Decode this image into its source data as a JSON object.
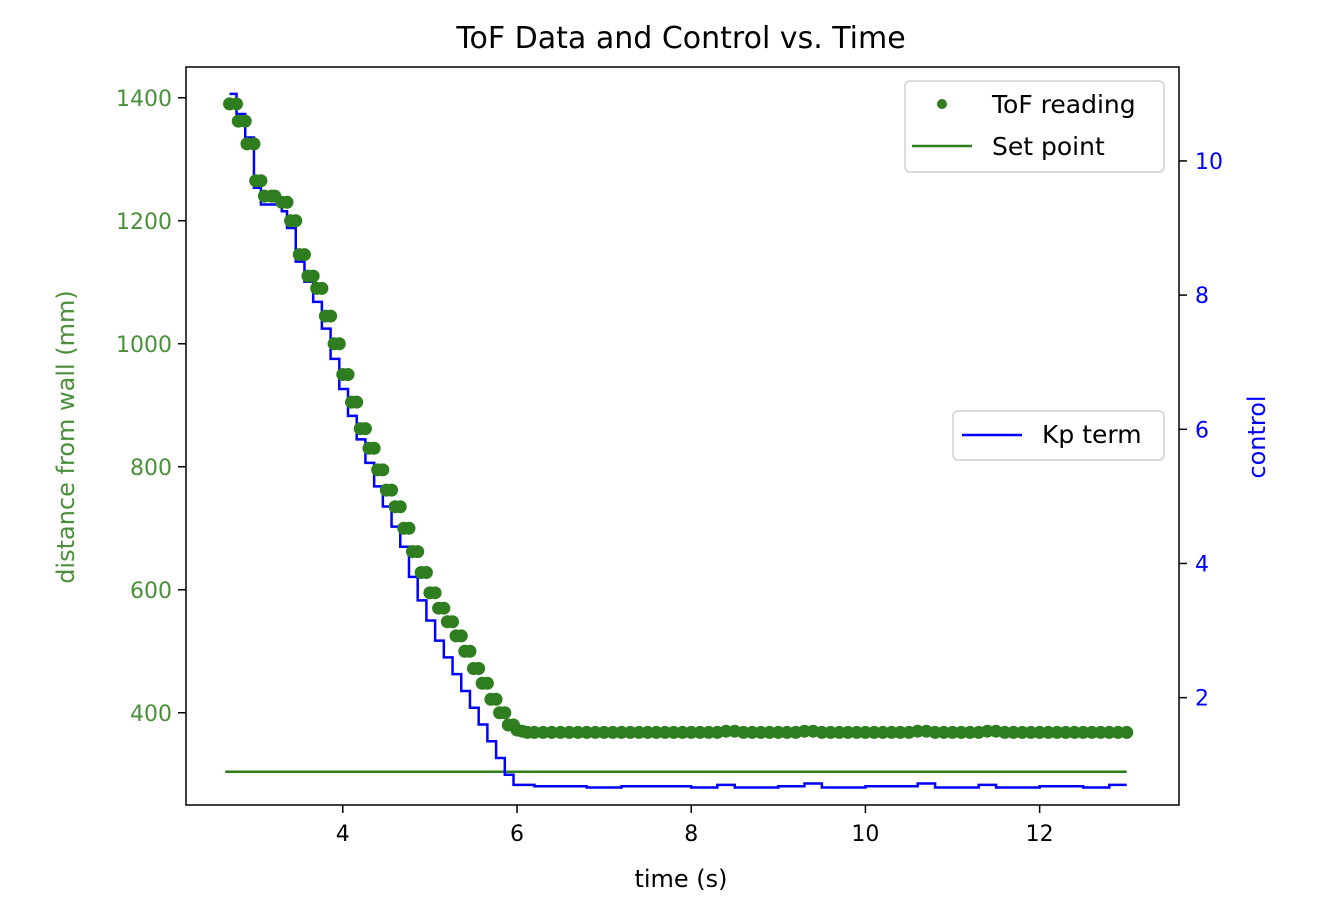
{
  "chart_data": {
    "type": "line",
    "title": "ToF Data and Control vs. Time",
    "xlabel": "time (s)",
    "ylabel_left": "distance from wall (mm)",
    "ylabel_right": "control",
    "xlim": [
      2.2,
      13.6
    ],
    "ylim_left": [
      250,
      1450
    ],
    "ylim_right": [
      0.4,
      11.4
    ],
    "x_ticks": [
      4,
      6,
      8,
      10,
      12
    ],
    "y_left_ticks": [
      400,
      600,
      800,
      1000,
      1200,
      1400
    ],
    "y_right_ticks": [
      2,
      4,
      6,
      8,
      10
    ],
    "grid": false,
    "colors": {
      "tof": "#2e7d1f",
      "setpoint": "#2e7d1f",
      "kp": "#0000ff",
      "left_axis": "#4a8f3a",
      "right_axis": "#0000ff"
    },
    "legends": [
      {
        "placement": "top-right",
        "entries": [
          "ToF reading",
          "Set point"
        ]
      },
      {
        "placement": "center-right",
        "entries": [
          "Kp term"
        ]
      }
    ],
    "series": [
      {
        "name": "ToF reading",
        "axis": "left",
        "style": "scatter",
        "points": [
          [
            2.7,
            1390
          ],
          [
            2.78,
            1390
          ],
          [
            2.8,
            1362
          ],
          [
            2.88,
            1362
          ],
          [
            2.9,
            1325
          ],
          [
            2.98,
            1325
          ],
          [
            3.0,
            1265
          ],
          [
            3.06,
            1265
          ],
          [
            3.1,
            1240
          ],
          [
            3.18,
            1240
          ],
          [
            3.22,
            1240
          ],
          [
            3.3,
            1230
          ],
          [
            3.36,
            1230
          ],
          [
            3.4,
            1200
          ],
          [
            3.46,
            1200
          ],
          [
            3.5,
            1145
          ],
          [
            3.56,
            1145
          ],
          [
            3.6,
            1110
          ],
          [
            3.66,
            1110
          ],
          [
            3.7,
            1090
          ],
          [
            3.76,
            1090
          ],
          [
            3.8,
            1045
          ],
          [
            3.86,
            1045
          ],
          [
            3.9,
            1000
          ],
          [
            3.96,
            1000
          ],
          [
            4.0,
            950
          ],
          [
            4.06,
            950
          ],
          [
            4.1,
            905
          ],
          [
            4.16,
            905
          ],
          [
            4.2,
            862
          ],
          [
            4.26,
            862
          ],
          [
            4.3,
            830
          ],
          [
            4.36,
            830
          ],
          [
            4.4,
            795
          ],
          [
            4.46,
            795
          ],
          [
            4.5,
            762
          ],
          [
            4.56,
            762
          ],
          [
            4.6,
            735
          ],
          [
            4.66,
            735
          ],
          [
            4.7,
            700
          ],
          [
            4.76,
            700
          ],
          [
            4.8,
            662
          ],
          [
            4.86,
            662
          ],
          [
            4.9,
            628
          ],
          [
            4.96,
            628
          ],
          [
            5.0,
            595
          ],
          [
            5.06,
            595
          ],
          [
            5.1,
            570
          ],
          [
            5.16,
            570
          ],
          [
            5.2,
            548
          ],
          [
            5.26,
            548
          ],
          [
            5.3,
            525
          ],
          [
            5.36,
            525
          ],
          [
            5.4,
            500
          ],
          [
            5.46,
            500
          ],
          [
            5.5,
            472
          ],
          [
            5.56,
            472
          ],
          [
            5.6,
            448
          ],
          [
            5.66,
            448
          ],
          [
            5.7,
            422
          ],
          [
            5.76,
            422
          ],
          [
            5.8,
            400
          ],
          [
            5.86,
            400
          ],
          [
            5.9,
            380
          ],
          [
            5.96,
            380
          ],
          [
            6.0,
            372
          ],
          [
            6.06,
            370
          ],
          [
            6.12,
            368
          ],
          [
            6.2,
            368
          ],
          [
            6.3,
            368
          ],
          [
            6.4,
            368
          ],
          [
            6.5,
            368
          ],
          [
            6.6,
            368
          ],
          [
            6.7,
            368
          ],
          [
            6.8,
            368
          ],
          [
            6.9,
            368
          ],
          [
            7.0,
            368
          ],
          [
            7.1,
            368
          ],
          [
            7.2,
            368
          ],
          [
            7.3,
            368
          ],
          [
            7.4,
            368
          ],
          [
            7.5,
            368
          ],
          [
            7.6,
            368
          ],
          [
            7.7,
            368
          ],
          [
            7.8,
            368
          ],
          [
            7.9,
            368
          ],
          [
            8.0,
            368
          ],
          [
            8.1,
            368
          ],
          [
            8.2,
            368
          ],
          [
            8.3,
            368
          ],
          [
            8.4,
            370
          ],
          [
            8.5,
            370
          ],
          [
            8.6,
            368
          ],
          [
            8.7,
            368
          ],
          [
            8.8,
            368
          ],
          [
            8.9,
            368
          ],
          [
            9.0,
            368
          ],
          [
            9.1,
            368
          ],
          [
            9.2,
            368
          ],
          [
            9.3,
            370
          ],
          [
            9.4,
            370
          ],
          [
            9.5,
            368
          ],
          [
            9.6,
            368
          ],
          [
            9.7,
            368
          ],
          [
            9.8,
            368
          ],
          [
            9.9,
            368
          ],
          [
            10.0,
            368
          ],
          [
            10.1,
            368
          ],
          [
            10.2,
            368
          ],
          [
            10.3,
            368
          ],
          [
            10.4,
            368
          ],
          [
            10.5,
            368
          ],
          [
            10.6,
            370
          ],
          [
            10.7,
            370
          ],
          [
            10.8,
            368
          ],
          [
            10.9,
            368
          ],
          [
            11.0,
            368
          ],
          [
            11.1,
            368
          ],
          [
            11.2,
            368
          ],
          [
            11.3,
            368
          ],
          [
            11.4,
            370
          ],
          [
            11.5,
            370
          ],
          [
            11.6,
            368
          ],
          [
            11.7,
            368
          ],
          [
            11.8,
            368
          ],
          [
            11.9,
            368
          ],
          [
            12.0,
            368
          ],
          [
            12.1,
            368
          ],
          [
            12.2,
            368
          ],
          [
            12.3,
            368
          ],
          [
            12.4,
            368
          ],
          [
            12.5,
            368
          ],
          [
            12.6,
            368
          ],
          [
            12.7,
            368
          ],
          [
            12.8,
            368
          ],
          [
            12.9,
            368
          ],
          [
            13.0,
            368
          ]
        ]
      },
      {
        "name": "Set point",
        "axis": "left",
        "style": "line",
        "points": [
          [
            2.65,
            304
          ],
          [
            13.0,
            304
          ]
        ]
      },
      {
        "name": "Kp term",
        "axis": "right",
        "style": "step",
        "points": [
          [
            2.7,
            11.0
          ],
          [
            2.78,
            10.7
          ],
          [
            2.88,
            10.35
          ],
          [
            2.98,
            9.6
          ],
          [
            3.06,
            9.35
          ],
          [
            3.3,
            9.25
          ],
          [
            3.36,
            9.0
          ],
          [
            3.46,
            8.5
          ],
          [
            3.56,
            8.2
          ],
          [
            3.66,
            7.9
          ],
          [
            3.76,
            7.5
          ],
          [
            3.86,
            7.05
          ],
          [
            3.96,
            6.6
          ],
          [
            4.06,
            6.2
          ],
          [
            4.16,
            5.85
          ],
          [
            4.26,
            5.5
          ],
          [
            4.36,
            5.15
          ],
          [
            4.46,
            4.85
          ],
          [
            4.56,
            4.55
          ],
          [
            4.66,
            4.25
          ],
          [
            4.76,
            3.8
          ],
          [
            4.86,
            3.45
          ],
          [
            4.96,
            3.15
          ],
          [
            5.06,
            2.85
          ],
          [
            5.16,
            2.6
          ],
          [
            5.26,
            2.35
          ],
          [
            5.36,
            2.1
          ],
          [
            5.46,
            1.85
          ],
          [
            5.56,
            1.6
          ],
          [
            5.66,
            1.35
          ],
          [
            5.76,
            1.1
          ],
          [
            5.86,
            0.85
          ],
          [
            5.96,
            0.7
          ],
          [
            6.2,
            0.68
          ],
          [
            6.8,
            0.66
          ],
          [
            7.2,
            0.68
          ],
          [
            8.0,
            0.66
          ],
          [
            8.3,
            0.7
          ],
          [
            8.5,
            0.66
          ],
          [
            9.0,
            0.68
          ],
          [
            9.3,
            0.72
          ],
          [
            9.5,
            0.66
          ],
          [
            10.0,
            0.68
          ],
          [
            10.6,
            0.72
          ],
          [
            10.8,
            0.66
          ],
          [
            11.3,
            0.7
          ],
          [
            11.5,
            0.66
          ],
          [
            12.0,
            0.68
          ],
          [
            12.5,
            0.66
          ],
          [
            12.8,
            0.7
          ],
          [
            13.0,
            0.7
          ]
        ]
      }
    ]
  }
}
